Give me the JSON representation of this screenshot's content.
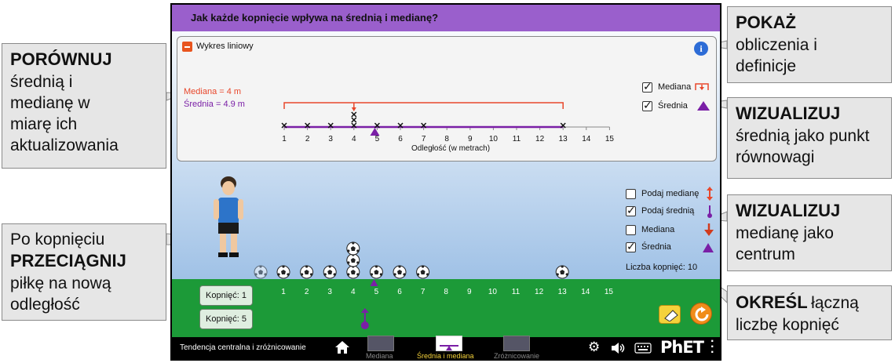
{
  "callouts": {
    "compare": {
      "bold": "PORÓWNUJ",
      "text": "średnią i medianę w miarę ich aktualizowania"
    },
    "drag": {
      "text1": "Po kopnięciu",
      "bold": "PRZECIĄGNIJ",
      "text2": "piłkę na nową odległość"
    },
    "show": {
      "bold": "POKAŻ",
      "text": "obliczenia i definicje"
    },
    "vis_mean": {
      "bold": "WIZUALIZUJ",
      "text": "średnią jako punkt równowagi"
    },
    "vis_median": {
      "bold": "WIZUALIZUJ",
      "text": "medianę jako centrum"
    },
    "count": {
      "bold": "OKREŚL",
      "text1": "łączną",
      "text2": "liczbę kopnięć"
    }
  },
  "sim": {
    "question": "Jak każde kopnięcie wpływa na średnią i medianę?",
    "panel": {
      "title": "Wykres liniowy",
      "median_text": "Mediana = 4 m",
      "mean_text": "Średnia = 4.9 m",
      "axis_label": "Odległość (w metrach)",
      "checkbox_median": "Mediana",
      "checkbox_mean": "Średnia"
    },
    "controls": {
      "predict_median": "Podaj medianę",
      "predict_mean": "Podaj średnią",
      "median": "Mediana",
      "mean": "Średnia",
      "kick_count": "Liczba kopnięć: 10"
    },
    "buttons": {
      "kick1": "Kopnięć: 1",
      "kick5": "Kopnięć: 5"
    },
    "navbar": {
      "sim_title": "Tendencja centralna i zróżnicowanie",
      "screen1": "Mediana",
      "screen2": "Średnia i mediana",
      "screen3": "Zróżnicowanie",
      "brand": "PhET"
    },
    "colors": {
      "median": "#e8472b",
      "mean": "#7a1fa6",
      "title_bar": "#9a5fcc",
      "grass": "#1c9a38"
    }
  },
  "chart_data": {
    "type": "dot",
    "x_ticks": [
      1,
      2,
      3,
      4,
      5,
      6,
      7,
      8,
      9,
      10,
      11,
      12,
      13,
      14,
      15
    ],
    "points": [
      1,
      2,
      3,
      4,
      4,
      4,
      5,
      6,
      7,
      13
    ],
    "median": 4,
    "mean": 4.9,
    "xlabel": "Odległość (w metrach)"
  }
}
